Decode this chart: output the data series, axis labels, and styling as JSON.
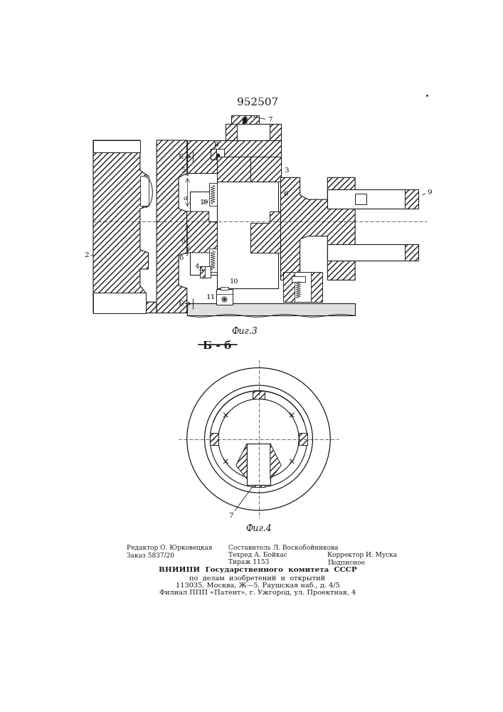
{
  "title": "952507",
  "fig1_caption": "Фиг.3",
  "fig2_caption": "Фиг.4",
  "section_label": "Б - б",
  "line_color": "#1a1a1a",
  "footer_left1": "Редактор О. Юрковецкая",
  "footer_left2": "Заказ 5837/20",
  "footer_mid1": "Составитель Л. Воскобойникова",
  "footer_mid2": "Техред А. Бойкас",
  "footer_right2": "Корректор И. Муска",
  "footer_mid3": "Тираж 1153",
  "footer_right3": "Подписное",
  "footer_vniip": "ВНИИПИ  Государственного  комитета  СССР",
  "footer_line2": "по  делам  изобретений  и  открытий",
  "footer_line3": "113035, Москва, Ж—5, Раушская наб., д. 4/5",
  "footer_line4": "Филиал ППП «Патент», г. Ужгород, ул. Проектная, 4"
}
